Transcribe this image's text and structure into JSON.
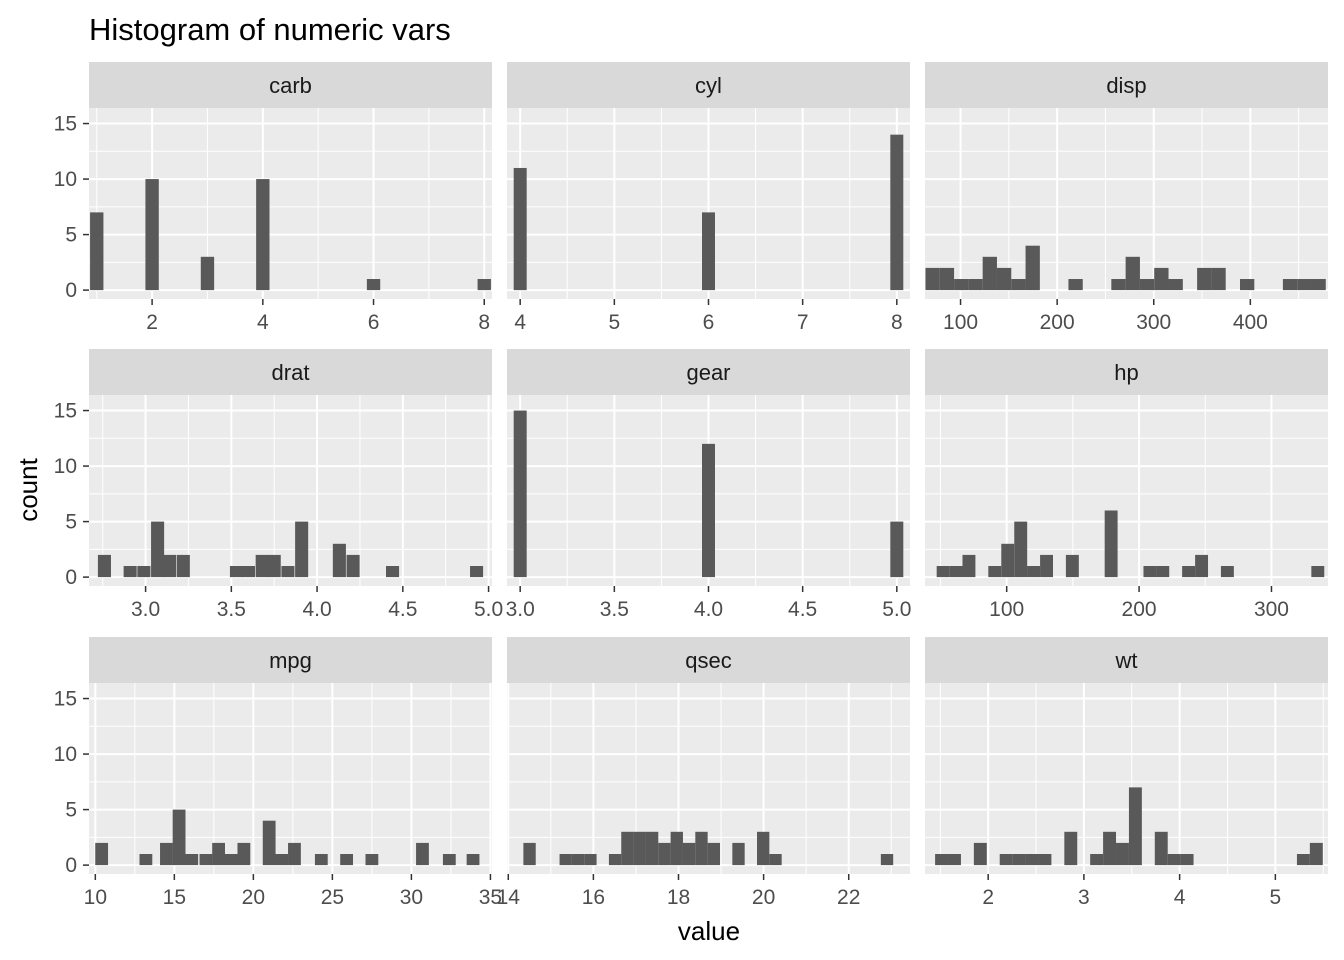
{
  "chart_data": {
    "type": "bar",
    "title": "Histogram of numeric vars",
    "xlabel": "value",
    "ylabel": "count",
    "y_ticks": [
      0,
      5,
      10,
      15
    ],
    "ylim": [
      0,
      15
    ],
    "grid": true,
    "colors": {
      "panel_bg": "#ebebeb",
      "strip_bg": "#d9d9d9",
      "grid": "#ffffff",
      "bar": "#595959",
      "tick": "#4d4d4d",
      "tick_line": "#333333"
    },
    "facets": [
      {
        "name": "carb",
        "xlim": [
          0.86,
          8.14
        ],
        "x_ticks": [
          "2",
          "4",
          "6",
          "8"
        ],
        "x_tick_values": [
          2,
          4,
          6,
          8
        ],
        "bin_width": 0.2414,
        "bars": [
          [
            1,
            7
          ],
          [
            2,
            10
          ],
          [
            3,
            3
          ],
          [
            4,
            10
          ],
          [
            6,
            1
          ],
          [
            8,
            1
          ]
        ]
      },
      {
        "name": "cyl",
        "xlim": [
          3.86,
          8.14
        ],
        "x_ticks": [
          "4",
          "5",
          "6",
          "7",
          "8"
        ],
        "x_tick_values": [
          4,
          5,
          6,
          7,
          8
        ],
        "bin_width": 0.1379,
        "bars": [
          [
            4,
            11
          ],
          [
            6,
            7
          ],
          [
            8,
            14
          ]
        ]
      },
      {
        "name": "disp",
        "xlim": [
          63.2,
          480.4
        ],
        "x_ticks": [
          "100",
          "200",
          "300",
          "400"
        ],
        "x_tick_values": [
          100,
          200,
          300,
          400
        ],
        "bin_width": 14.8,
        "bars": [
          [
            71.1,
            2
          ],
          [
            85.9,
            2
          ],
          [
            100.7,
            1
          ],
          [
            115.5,
            1
          ],
          [
            130.3,
            3
          ],
          [
            145.1,
            2
          ],
          [
            159.9,
            1
          ],
          [
            174.7,
            4
          ],
          [
            219.1,
            1
          ],
          [
            263.5,
            1
          ],
          [
            278.3,
            3
          ],
          [
            293.1,
            1
          ],
          [
            307.9,
            2
          ],
          [
            322.7,
            1
          ],
          [
            352.3,
            2
          ],
          [
            367.1,
            2
          ],
          [
            396.7,
            1
          ],
          [
            441.1,
            1
          ],
          [
            455.9,
            1
          ],
          [
            470.7,
            1
          ]
        ]
      },
      {
        "name": "drat",
        "xlim": [
          2.67,
          5.02
        ],
        "x_ticks": [
          "3.0",
          "3.5",
          "4.0",
          "4.5",
          "5.0"
        ],
        "x_tick_values": [
          3.0,
          3.5,
          4.0,
          4.5,
          5.0
        ],
        "bin_width": 0.0762,
        "bars": [
          [
            2.76,
            2
          ],
          [
            2.91,
            1
          ],
          [
            2.99,
            1
          ],
          [
            3.07,
            5
          ],
          [
            3.14,
            2
          ],
          [
            3.22,
            2
          ],
          [
            3.53,
            1
          ],
          [
            3.6,
            1
          ],
          [
            3.68,
            2
          ],
          [
            3.75,
            2
          ],
          [
            3.83,
            1
          ],
          [
            3.91,
            5
          ],
          [
            4.13,
            3
          ],
          [
            4.21,
            2
          ],
          [
            4.44,
            1
          ],
          [
            4.93,
            1
          ]
        ]
      },
      {
        "name": "gear",
        "xlim": [
          2.93,
          5.07
        ],
        "x_ticks": [
          "3.0",
          "3.5",
          "4.0",
          "4.5",
          "5.0"
        ],
        "x_tick_values": [
          3.0,
          3.5,
          4.0,
          4.5,
          5.0
        ],
        "bin_width": 0.069,
        "bars": [
          [
            3,
            15
          ],
          [
            4,
            12
          ],
          [
            5,
            5
          ]
        ]
      },
      {
        "name": "hp",
        "xlim": [
          38.3,
          342.7
        ],
        "x_ticks": [
          "100",
          "200",
          "300"
        ],
        "x_tick_values": [
          100,
          200,
          300
        ],
        "bin_width": 9.76,
        "bars": [
          [
            52,
            1
          ],
          [
            61.8,
            1
          ],
          [
            71.5,
            2
          ],
          [
            91,
            1
          ],
          [
            100.8,
            3
          ],
          [
            110.6,
            5
          ],
          [
            120.3,
            1
          ],
          [
            130.1,
            2
          ],
          [
            149.6,
            2
          ],
          [
            178.9,
            6
          ],
          [
            208.2,
            1
          ],
          [
            217.9,
            1
          ],
          [
            237.4,
            1
          ],
          [
            247.2,
            2
          ],
          [
            266.7,
            1
          ],
          [
            335,
            1
          ]
        ]
      },
      {
        "name": "mpg",
        "xlim": [
          9.6,
          35.1
        ],
        "x_ticks": [
          "10",
          "15",
          "20",
          "25",
          "30",
          "35"
        ],
        "x_tick_values": [
          10,
          15,
          20,
          25,
          30,
          35
        ],
        "bin_width": 0.81,
        "bars": [
          [
            10.4,
            2
          ],
          [
            13.2,
            1
          ],
          [
            14.5,
            2
          ],
          [
            15.3,
            5
          ],
          [
            16.1,
            1
          ],
          [
            17.0,
            1
          ],
          [
            17.8,
            2
          ],
          [
            18.6,
            1
          ],
          [
            19.4,
            2
          ],
          [
            21.0,
            4
          ],
          [
            21.8,
            1
          ],
          [
            22.6,
            2
          ],
          [
            24.3,
            1
          ],
          [
            25.9,
            1
          ],
          [
            27.5,
            1
          ],
          [
            30.7,
            2
          ],
          [
            32.4,
            1
          ],
          [
            33.9,
            1
          ]
        ]
      },
      {
        "name": "qsec",
        "xlim": [
          13.97,
          23.44
        ],
        "x_ticks": [
          "14",
          "16",
          "18",
          "20",
          "22"
        ],
        "x_tick_values": [
          14,
          16,
          18,
          20,
          22
        ],
        "bin_width": 0.29,
        "bars": [
          [
            14.5,
            2
          ],
          [
            15.35,
            1
          ],
          [
            15.64,
            1
          ],
          [
            15.93,
            1
          ],
          [
            16.51,
            1
          ],
          [
            16.8,
            3
          ],
          [
            17.09,
            3
          ],
          [
            17.38,
            3
          ],
          [
            17.67,
            2
          ],
          [
            17.96,
            3
          ],
          [
            18.25,
            2
          ],
          [
            18.54,
            3
          ],
          [
            18.83,
            2
          ],
          [
            19.41,
            2
          ],
          [
            19.99,
            3
          ],
          [
            20.28,
            1
          ],
          [
            22.9,
            1
          ]
        ]
      },
      {
        "name": "wt",
        "xlim": [
          1.34,
          5.55
        ],
        "x_ticks": [
          "2",
          "3",
          "4",
          "5"
        ],
        "x_tick_values": [
          2,
          3,
          4,
          5
        ],
        "bin_width": 0.135,
        "bars": [
          [
            1.513,
            1
          ],
          [
            1.648,
            1
          ],
          [
            1.918,
            2
          ],
          [
            2.188,
            1
          ],
          [
            2.323,
            1
          ],
          [
            2.458,
            1
          ],
          [
            2.593,
            1
          ],
          [
            2.863,
            3
          ],
          [
            3.133,
            1
          ],
          [
            3.268,
            3
          ],
          [
            3.403,
            2
          ],
          [
            3.538,
            7
          ],
          [
            3.808,
            3
          ],
          [
            3.943,
            1
          ],
          [
            4.078,
            1
          ],
          [
            5.293,
            1
          ],
          [
            5.428,
            2
          ]
        ]
      }
    ]
  }
}
